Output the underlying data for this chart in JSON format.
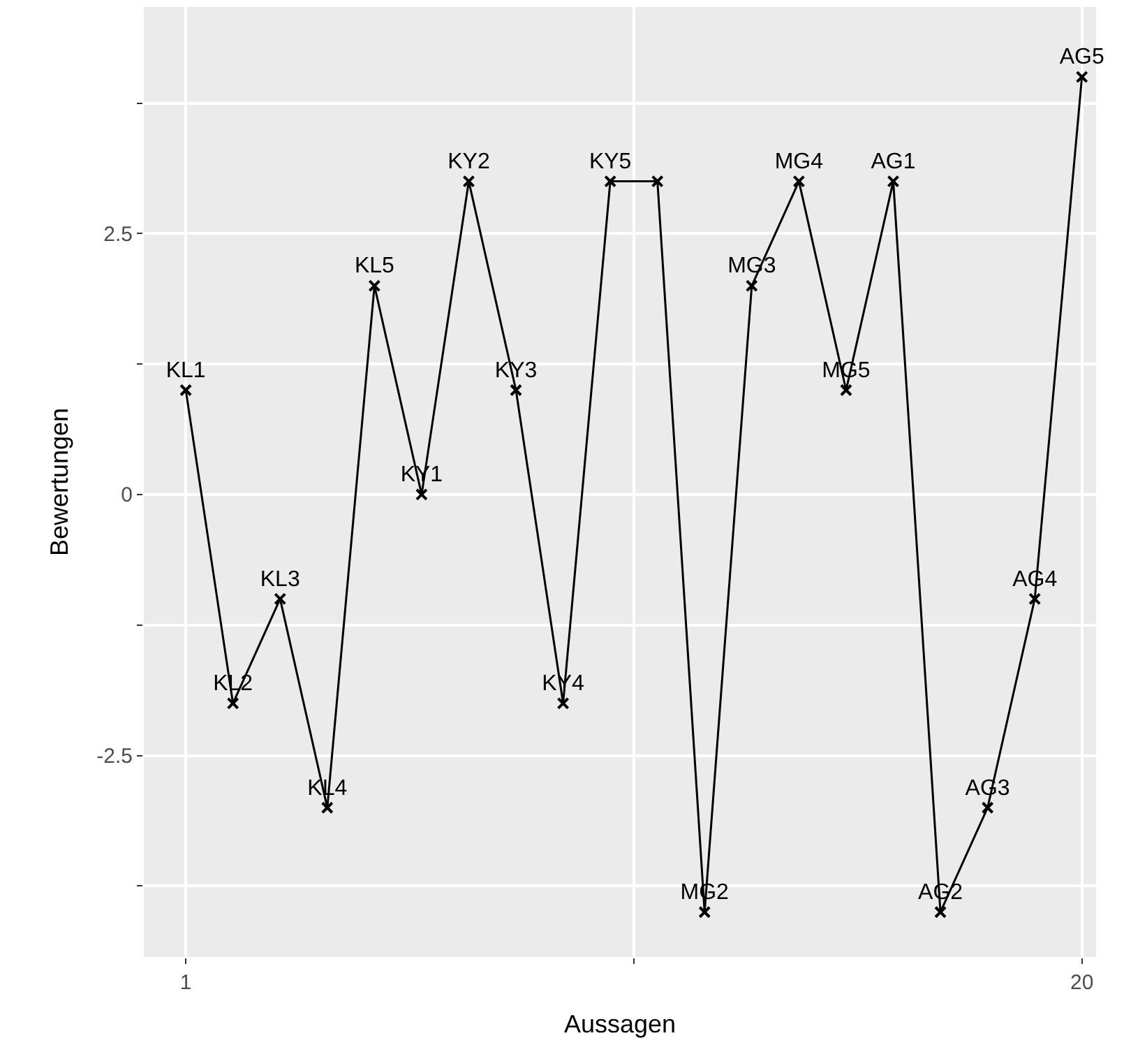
{
  "chart_data": {
    "type": "line",
    "xlabel": "Aussagen",
    "ylabel": "Bewertungen",
    "x": [
      1,
      2,
      3,
      4,
      5,
      6,
      7,
      8,
      9,
      10,
      11,
      12,
      13,
      14,
      15,
      16,
      17,
      18,
      19,
      20
    ],
    "series": [
      {
        "color": "#000000",
        "values": [
          1,
          -2,
          -1,
          -3,
          2,
          0,
          3,
          1,
          -2,
          3,
          3,
          -4,
          2,
          3,
          1,
          3,
          -4,
          -3,
          -1,
          4
        ],
        "value_labels": [
          "KL1",
          "KL2",
          "KL3",
          "KL4",
          "KL5",
          "KY1",
          "KY2",
          "KY3",
          "KY4",
          "KY5",
          null,
          "MG2",
          "MG3",
          "MG4",
          "MG5",
          "AG1",
          "AG2",
          "AG3",
          "AG4",
          "AG5"
        ]
      }
    ],
    "xlim": [
      0.11,
      20.3
    ],
    "xticks": [
      1,
      {
        "value": 10.5,
        "label": null
      },
      20
    ],
    "ylim": [
      -4.43,
      4.67
    ],
    "yticks": [
      {
        "value": -3.75,
        "label": null
      },
      -2.5,
      {
        "value": -1.25,
        "label": null
      },
      0,
      {
        "value": 1.25,
        "label": null
      },
      2.5,
      {
        "value": 3.75,
        "label": null
      }
    ],
    "grid": true,
    "marker": "cross",
    "line_style": "solid",
    "legend": false
  }
}
